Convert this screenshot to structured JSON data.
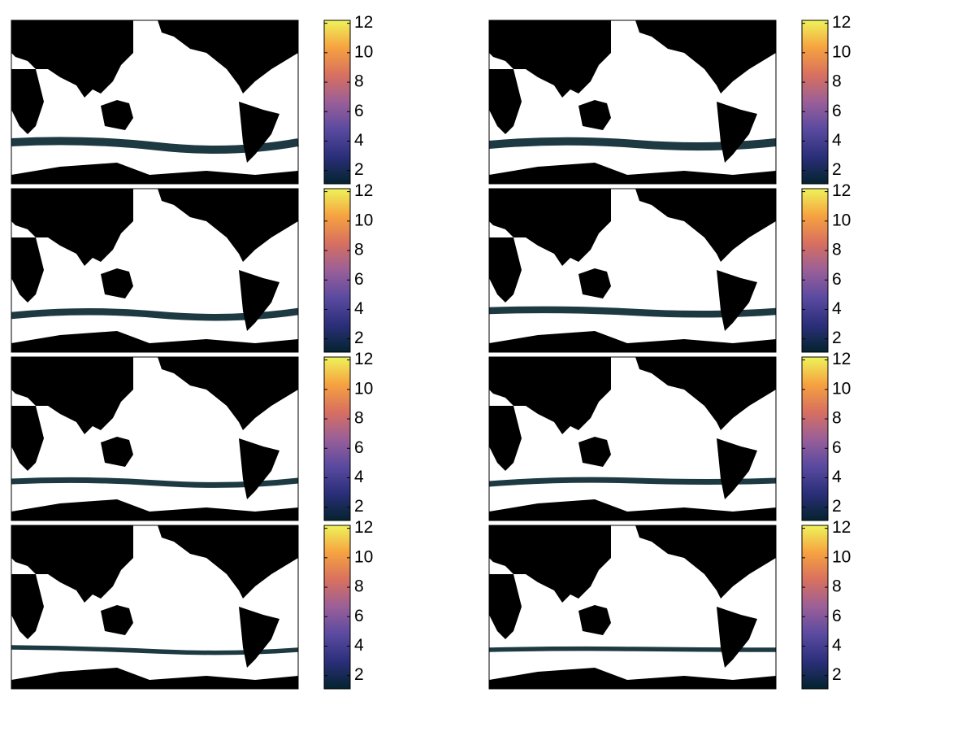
{
  "chart_data": [
    {
      "type": "map",
      "colorbar": {
        "lim": [
          1.1,
          12.2
        ],
        "ticks": [
          2,
          4,
          6,
          8,
          10,
          12
        ],
        "colormap": [
          "#04232e",
          "#2b2f7a",
          "#5a4aa0",
          "#9a5f98",
          "#d8705f",
          "#f6a240",
          "#eef35a"
        ]
      }
    },
    {
      "type": "map",
      "colorbar": {
        "lim": [
          1.1,
          12.2
        ],
        "ticks": [
          2,
          4,
          6,
          8,
          10,
          12
        ],
        "colormap": [
          "#04232e",
          "#2b2f7a",
          "#5a4aa0",
          "#9a5f98",
          "#d8705f",
          "#f6a240",
          "#eef35a"
        ]
      }
    },
    {
      "type": "map",
      "colorbar": {
        "lim": [
          1.1,
          12.2
        ],
        "ticks": [
          2,
          4,
          6,
          8,
          10,
          12
        ],
        "colormap": [
          "#04232e",
          "#2b2f7a",
          "#5a4aa0",
          "#9a5f98",
          "#d8705f",
          "#f6a240",
          "#eef35a"
        ]
      }
    },
    {
      "type": "map",
      "colorbar": {
        "lim": [
          1.1,
          12.2
        ],
        "ticks": [
          2,
          4,
          6,
          8,
          10,
          12
        ],
        "colormap": [
          "#04232e",
          "#2b2f7a",
          "#5a4aa0",
          "#9a5f98",
          "#d8705f",
          "#f6a240",
          "#eef35a"
        ]
      }
    },
    {
      "type": "map",
      "colorbar": {
        "lim": [
          1.1,
          12.2
        ],
        "ticks": [
          2,
          4,
          6,
          8,
          10,
          12
        ],
        "colormap": [
          "#04232e",
          "#2b2f7a",
          "#5a4aa0",
          "#9a5f98",
          "#d8705f",
          "#f6a240",
          "#eef35a"
        ]
      }
    },
    {
      "type": "map",
      "colorbar": {
        "lim": [
          1.1,
          12.2
        ],
        "ticks": [
          2,
          4,
          6,
          8,
          10,
          12
        ],
        "colormap": [
          "#04232e",
          "#2b2f7a",
          "#5a4aa0",
          "#9a5f98",
          "#d8705f",
          "#f6a240",
          "#eef35a"
        ]
      }
    },
    {
      "type": "map",
      "colorbar": {
        "lim": [
          1.1,
          12.2
        ],
        "ticks": [
          2,
          4,
          6,
          8,
          10,
          12
        ],
        "colormap": [
          "#04232e",
          "#2b2f7a",
          "#5a4aa0",
          "#9a5f98",
          "#d8705f",
          "#f6a240",
          "#eef35a"
        ]
      }
    },
    {
      "type": "map",
      "colorbar": {
        "lim": [
          1.1,
          12.2
        ],
        "ticks": [
          2,
          4,
          6,
          8,
          10,
          12
        ],
        "colormap": [
          "#04232e",
          "#2b2f7a",
          "#5a4aa0",
          "#9a5f98",
          "#d8705f",
          "#f6a240",
          "#eef35a"
        ]
      }
    }
  ]
}
